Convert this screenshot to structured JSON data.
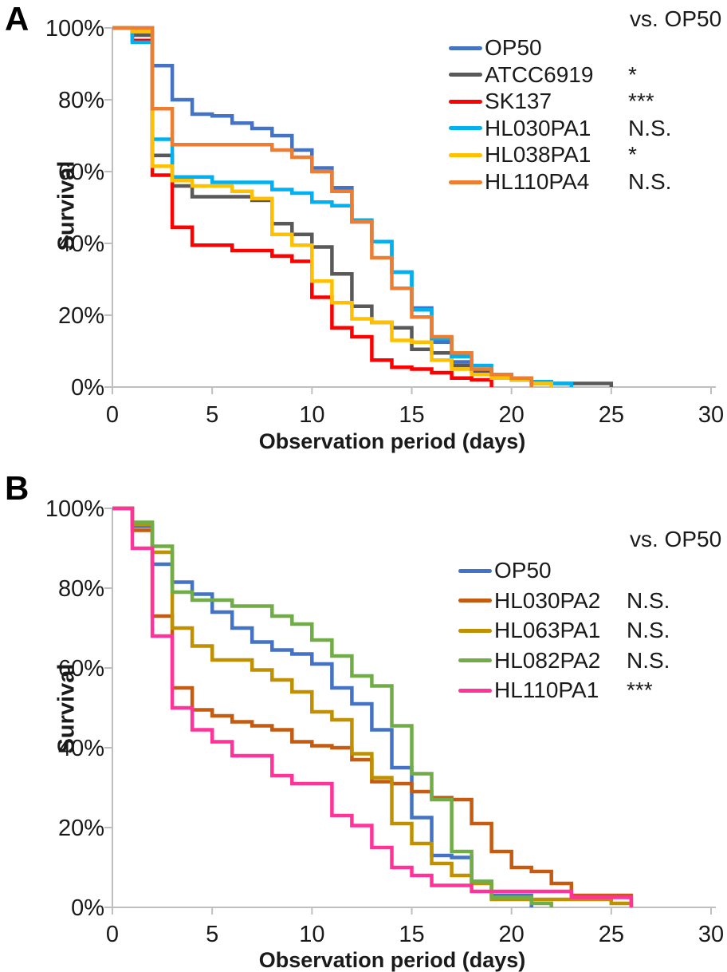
{
  "figure_note": "Two-panel Kaplan-Meier style survival figure",
  "chart_data": [
    {
      "type": "line",
      "style": "step_survival",
      "panel_label": "A",
      "xlabel": "Observation period (days)",
      "ylabel": "Survival",
      "legend_title": "vs. OP50",
      "legend_position": "upper right",
      "grid": false,
      "xlim": [
        0,
        30
      ],
      "ylim_pct": [
        0,
        100
      ],
      "x_ticks": [
        "0",
        "5",
        "10",
        "15",
        "20",
        "25",
        "30"
      ],
      "y_ticks": [
        "100%",
        "80%",
        "60%",
        "40%",
        "20%",
        "0%"
      ],
      "axis_color": "#BFBFBF",
      "series": [
        {
          "name": "OP50",
          "color": "#4472C4",
          "significance": "",
          "points": [
            [
              0,
              100
            ],
            [
              1,
              100
            ],
            [
              2,
              89.5
            ],
            [
              3,
              80
            ],
            [
              4,
              76
            ],
            [
              5,
              75.5
            ],
            [
              6,
              73.5
            ],
            [
              7,
              72
            ],
            [
              8,
              70
            ],
            [
              9,
              66
            ],
            [
              10,
              61
            ],
            [
              11,
              55.5
            ],
            [
              12,
              46
            ],
            [
              13,
              40.5
            ],
            [
              14,
              32
            ],
            [
              15,
              22
            ],
            [
              16,
              12.5
            ],
            [
              17,
              7
            ],
            [
              18,
              4.5
            ],
            [
              19,
              3.5
            ],
            [
              20,
              2.2
            ],
            [
              21,
              1.5
            ],
            [
              22,
              0
            ]
          ]
        },
        {
          "name": "ATCC6919",
          "color": "#595959",
          "significance": "*",
          "points": [
            [
              0,
              100
            ],
            [
              1,
              98
            ],
            [
              2,
              64.5
            ],
            [
              3,
              56
            ],
            [
              4,
              53
            ],
            [
              5,
              53
            ],
            [
              6,
              53
            ],
            [
              7,
              52
            ],
            [
              8,
              45.5
            ],
            [
              9,
              42.5
            ],
            [
              10,
              39
            ],
            [
              11,
              31.5
            ],
            [
              12,
              22.5
            ],
            [
              13,
              18
            ],
            [
              14,
              16.5
            ],
            [
              15,
              10.5
            ],
            [
              16,
              9.5
            ],
            [
              17,
              6
            ],
            [
              18,
              4.5
            ],
            [
              19,
              3.5
            ],
            [
              20,
              2
            ],
            [
              21,
              1
            ],
            [
              25,
              0
            ]
          ]
        },
        {
          "name": "SK137",
          "color": "#FE0000",
          "significance": "***",
          "points": [
            [
              0,
              100
            ],
            [
              1,
              96.5
            ],
            [
              2,
              59
            ],
            [
              3,
              44.5
            ],
            [
              4,
              39.5
            ],
            [
              5,
              39.5
            ],
            [
              6,
              38
            ],
            [
              7,
              38
            ],
            [
              8,
              36.5
            ],
            [
              9,
              35
            ],
            [
              10,
              25
            ],
            [
              11,
              16.5
            ],
            [
              12,
              14
            ],
            [
              13,
              7.5
            ],
            [
              14,
              5.5
            ],
            [
              15,
              5
            ],
            [
              16,
              4
            ],
            [
              17,
              2.5
            ],
            [
              18,
              2
            ],
            [
              19,
              0
            ]
          ]
        },
        {
          "name": "HL030PA1",
          "color": "#00B0F0",
          "significance": "N.S.",
          "points": [
            [
              0,
              100
            ],
            [
              1,
              96
            ],
            [
              2,
              69
            ],
            [
              3,
              58.5
            ],
            [
              4,
              58.5
            ],
            [
              5,
              57
            ],
            [
              6,
              57
            ],
            [
              7,
              57
            ],
            [
              8,
              55
            ],
            [
              9,
              54
            ],
            [
              10,
              51.5
            ],
            [
              11,
              50.5
            ],
            [
              12,
              46.5
            ],
            [
              13,
              40.5
            ],
            [
              14,
              32
            ],
            [
              15,
              21.5
            ],
            [
              16,
              13.5
            ],
            [
              17,
              8.5
            ],
            [
              18,
              6
            ],
            [
              19,
              3.5
            ],
            [
              20,
              2
            ],
            [
              21,
              1.5
            ],
            [
              22,
              1
            ],
            [
              23,
              0
            ]
          ]
        },
        {
          "name": "HL038PA1",
          "color": "#FFC000",
          "significance": "*",
          "points": [
            [
              0,
              100
            ],
            [
              1,
              99
            ],
            [
              2,
              61.5
            ],
            [
              3,
              57.5
            ],
            [
              4,
              56
            ],
            [
              5,
              56
            ],
            [
              6,
              54.5
            ],
            [
              7,
              52.5
            ],
            [
              8,
              42.5
            ],
            [
              9,
              39.5
            ],
            [
              10,
              29.5
            ],
            [
              11,
              23.5
            ],
            [
              12,
              19
            ],
            [
              13,
              18
            ],
            [
              14,
              13
            ],
            [
              15,
              12.5
            ],
            [
              16,
              7.5
            ],
            [
              17,
              5
            ],
            [
              18,
              3.5
            ],
            [
              19,
              2.5
            ],
            [
              20,
              2
            ],
            [
              21,
              1
            ],
            [
              22,
              0
            ]
          ]
        },
        {
          "name": "HL110PA4",
          "color": "#ED7D31",
          "significance": "N.S.",
          "points": [
            [
              0,
              100
            ],
            [
              1,
              100
            ],
            [
              2,
              77.5
            ],
            [
              3,
              67.5
            ],
            [
              4,
              67.5
            ],
            [
              5,
              67.5
            ],
            [
              6,
              67.5
            ],
            [
              7,
              67.5
            ],
            [
              8,
              66
            ],
            [
              9,
              64
            ],
            [
              10,
              60
            ],
            [
              11,
              54.5
            ],
            [
              12,
              46
            ],
            [
              13,
              36
            ],
            [
              14,
              27.5
            ],
            [
              15,
              19.5
            ],
            [
              16,
              14
            ],
            [
              17,
              9.5
            ],
            [
              18,
              5
            ],
            [
              19,
              3.5
            ],
            [
              20,
              2.5
            ],
            [
              21,
              0
            ]
          ]
        }
      ]
    },
    {
      "type": "line",
      "style": "step_survival",
      "panel_label": "B",
      "xlabel": "Observation period (days)",
      "ylabel": "Survival",
      "legend_title": "vs. OP50",
      "legend_position": "upper right",
      "grid": false,
      "xlim": [
        0,
        30
      ],
      "ylim_pct": [
        0,
        100
      ],
      "x_ticks": [
        "0",
        "5",
        "10",
        "15",
        "20",
        "25",
        "30"
      ],
      "y_ticks": [
        "100%",
        "80%",
        "60%",
        "40%",
        "20%",
        "0%"
      ],
      "axis_color": "#BFBFBF",
      "series": [
        {
          "name": "OP50",
          "color": "#4472C4",
          "significance": "",
          "points": [
            [
              0,
              100
            ],
            [
              1,
              95.5
            ],
            [
              2,
              86
            ],
            [
              3,
              81.5
            ],
            [
              4,
              78.5
            ],
            [
              5,
              74
            ],
            [
              6,
              70
            ],
            [
              7,
              66.5
            ],
            [
              8,
              64.5
            ],
            [
              9,
              63.5
            ],
            [
              10,
              61
            ],
            [
              11,
              55
            ],
            [
              12,
              51
            ],
            [
              13,
              44.5
            ],
            [
              14,
              35
            ],
            [
              15,
              22.5
            ],
            [
              16,
              13
            ],
            [
              17,
              12.5
            ],
            [
              18,
              6.5
            ],
            [
              19,
              3
            ],
            [
              20,
              3
            ],
            [
              21,
              0
            ]
          ]
        },
        {
          "name": "HL030PA2",
          "color": "#C55A11",
          "significance": "N.S.",
          "points": [
            [
              0,
              100
            ],
            [
              1,
              94.5
            ],
            [
              2,
              73
            ],
            [
              3,
              55
            ],
            [
              4,
              49.5
            ],
            [
              5,
              48
            ],
            [
              6,
              46.5
            ],
            [
              7,
              45.5
            ],
            [
              8,
              44.5
            ],
            [
              9,
              41.5
            ],
            [
              10,
              40.5
            ],
            [
              11,
              40
            ],
            [
              12,
              37
            ],
            [
              13,
              31.5
            ],
            [
              14,
              31
            ],
            [
              15,
              29
            ],
            [
              16,
              27.5
            ],
            [
              17,
              27
            ],
            [
              18,
              21
            ],
            [
              19,
              14
            ],
            [
              20,
              10
            ],
            [
              21,
              9
            ],
            [
              22,
              6
            ],
            [
              23,
              3
            ],
            [
              26,
              0
            ]
          ]
        },
        {
          "name": "HL063PA1",
          "color": "#BF9000",
          "significance": "N.S.",
          "points": [
            [
              0,
              100
            ],
            [
              1,
              96
            ],
            [
              2,
              89
            ],
            [
              3,
              70
            ],
            [
              4,
              65.5
            ],
            [
              5,
              62
            ],
            [
              6,
              62
            ],
            [
              7,
              59.5
            ],
            [
              8,
              57
            ],
            [
              9,
              54
            ],
            [
              10,
              49
            ],
            [
              11,
              47
            ],
            [
              12,
              38.5
            ],
            [
              13,
              32.5
            ],
            [
              14,
              21
            ],
            [
              15,
              16
            ],
            [
              16,
              11
            ],
            [
              17,
              8
            ],
            [
              18,
              6
            ],
            [
              19,
              2
            ],
            [
              25,
              1
            ],
            [
              26,
              0
            ]
          ]
        },
        {
          "name": "HL082PA2",
          "color": "#70AD47",
          "significance": "N.S.",
          "points": [
            [
              0,
              100
            ],
            [
              1,
              96.5
            ],
            [
              2,
              90.5
            ],
            [
              3,
              79
            ],
            [
              4,
              77
            ],
            [
              5,
              77
            ],
            [
              6,
              75.5
            ],
            [
              7,
              75.5
            ],
            [
              8,
              73
            ],
            [
              9,
              71
            ],
            [
              10,
              67
            ],
            [
              11,
              63
            ],
            [
              12,
              58
            ],
            [
              13,
              55.5
            ],
            [
              14,
              45.5
            ],
            [
              15,
              33.5
            ],
            [
              16,
              27
            ],
            [
              17,
              14
            ],
            [
              18,
              6.5
            ],
            [
              19,
              2.5
            ],
            [
              21,
              1
            ],
            [
              22,
              0
            ]
          ]
        },
        {
          "name": "HL110PA1",
          "color": "#FF3399",
          "significance": "***",
          "points": [
            [
              0,
              100
            ],
            [
              1,
              90
            ],
            [
              2,
              68
            ],
            [
              3,
              50
            ],
            [
              4,
              44.5
            ],
            [
              5,
              41.5
            ],
            [
              6,
              38
            ],
            [
              7,
              38
            ],
            [
              8,
              33
            ],
            [
              9,
              31
            ],
            [
              10,
              31
            ],
            [
              11,
              23
            ],
            [
              12,
              20.5
            ],
            [
              13,
              15
            ],
            [
              14,
              10
            ],
            [
              15,
              8
            ],
            [
              16,
              5.5
            ],
            [
              17,
              5.5
            ],
            [
              18,
              4
            ],
            [
              22,
              4
            ],
            [
              23,
              2.5
            ],
            [
              26,
              0
            ]
          ]
        }
      ]
    }
  ]
}
